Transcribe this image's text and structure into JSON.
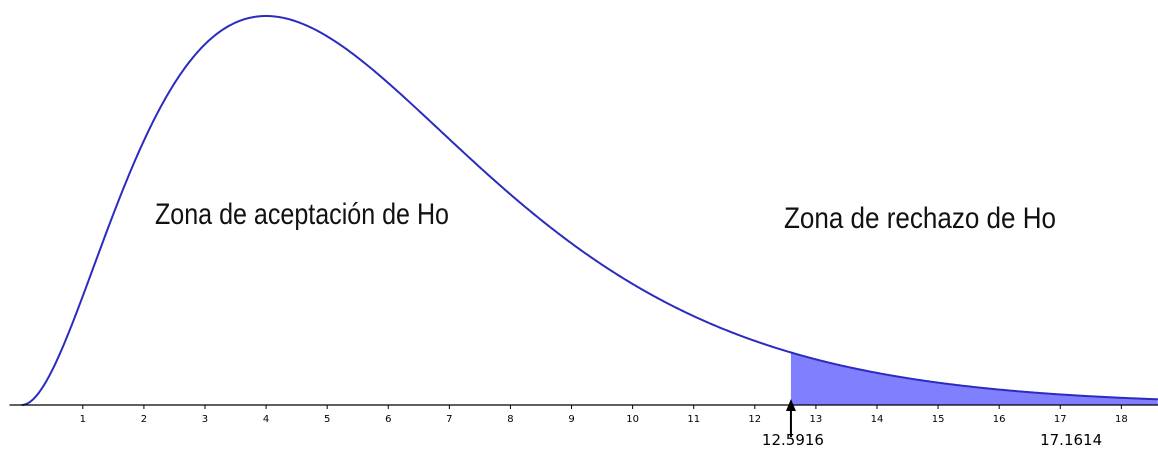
{
  "chart_data": {
    "type": "area",
    "distribution": "chi-square",
    "degrees_of_freedom": 6,
    "title": "",
    "xlabel": "",
    "ylabel": "",
    "xlim": [
      -0.2,
      18.6
    ],
    "x_ticks": [
      "1",
      "2",
      "3",
      "4",
      "5",
      "6",
      "7",
      "8",
      "9",
      "10",
      "11",
      "12",
      "13",
      "14",
      "15",
      "16",
      "17",
      "18"
    ],
    "acceptance_label": "Zona de aceptación de Ho",
    "rejection_label": "Zona de rechazo de Ho",
    "critical_value": 12.5916,
    "critical_value_label": "12.5916",
    "test_statistic": 17.1614,
    "test_statistic_label": "17.1614",
    "colors": {
      "curve": "#2b2bc0",
      "rejection_fill": "#8080ff",
      "axis": "#000000",
      "arrow": "#000000"
    }
  }
}
